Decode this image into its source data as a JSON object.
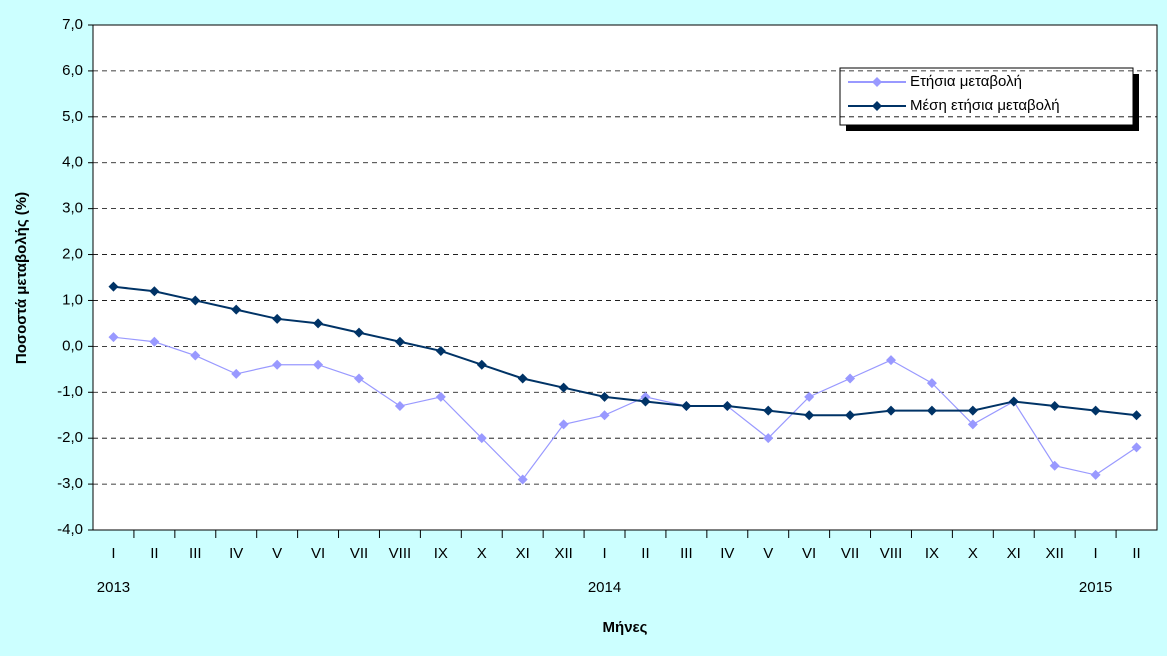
{
  "chart_data": {
    "type": "line",
    "y_label": "Ποσοστά μεταβολής (%)",
    "x_label": "Μήνες",
    "categories": [
      "I",
      "II",
      "III",
      "IV",
      "V",
      "VI",
      "VII",
      "VIII",
      "IX",
      "X",
      "XI",
      "XII",
      "I",
      "II",
      "III",
      "IV",
      "V",
      "VI",
      "VII",
      "VIII",
      "IX",
      "X",
      "XI",
      "XII",
      "I",
      "II"
    ],
    "year_labels": [
      "2013",
      null,
      null,
      null,
      null,
      null,
      null,
      null,
      null,
      null,
      null,
      null,
      "2014",
      null,
      null,
      null,
      null,
      null,
      null,
      null,
      null,
      null,
      null,
      null,
      "2015",
      null
    ],
    "series": [
      {
        "name": "Ετήσια μεταβολή",
        "color": "#9999ff",
        "values": [
          0.2,
          0.1,
          -0.2,
          -0.6,
          -0.4,
          -0.4,
          -0.7,
          -1.3,
          -1.1,
          -2.0,
          -2.9,
          -1.7,
          -1.5,
          -1.1,
          -1.3,
          -1.3,
          -2.0,
          -1.1,
          -0.7,
          -0.3,
          -0.8,
          -1.7,
          -1.2,
          -2.6,
          -2.8,
          -2.2
        ]
      },
      {
        "name": "Μέση ετήσια μεταβολή",
        "color": "#003366",
        "values": [
          1.3,
          1.2,
          1.0,
          0.8,
          0.6,
          0.5,
          0.3,
          0.1,
          -0.1,
          -0.4,
          -0.7,
          -0.9,
          -1.1,
          -1.2,
          -1.3,
          -1.3,
          -1.4,
          -1.5,
          -1.5,
          -1.4,
          -1.4,
          -1.4,
          -1.2,
          -1.3,
          -1.4,
          -1.5
        ]
      }
    ],
    "ylim": [
      -4,
      7
    ],
    "yticks": [
      {
        "value": -4,
        "label": "-4,0"
      },
      {
        "value": -3,
        "label": "-3,0"
      },
      {
        "value": -2,
        "label": "-2,0"
      },
      {
        "value": -1,
        "label": "-1,0"
      },
      {
        "value": 0,
        "label": "0,0"
      },
      {
        "value": 1,
        "label": "1,0"
      },
      {
        "value": 2,
        "label": "2,0"
      },
      {
        "value": 3,
        "label": "3,0"
      },
      {
        "value": 4,
        "label": "4,0"
      },
      {
        "value": 5,
        "label": "5,0"
      },
      {
        "value": 6,
        "label": "6,0"
      },
      {
        "value": 7,
        "label": "7,0"
      }
    ],
    "grid": true
  }
}
